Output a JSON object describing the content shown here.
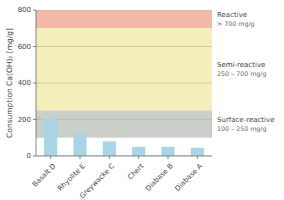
{
  "chart_data": {
    "type": "bar",
    "categories": [
      "Basalt D",
      "Rhyolite E",
      "Greywacke C",
      "Chert",
      "Diabase B",
      "Diabase A"
    ],
    "values": [
      205,
      120,
      80,
      50,
      50,
      45
    ],
    "color": "#a8d4e6",
    "ylabel": "Consumption Ca(OH)₂ [mg/g]",
    "ylim": [
      0,
      800
    ],
    "yticks": [
      0,
      200,
      400,
      600,
      800
    ],
    "grid": true,
    "zones": [
      {
        "label": "Reactive",
        "sub": "> 700 mg/g",
        "ymin": 700,
        "ymax": 800,
        "color": "#f2b8a8"
      },
      {
        "label": "Semi-reactive",
        "sub": "250 – 700 mg/g",
        "ymin": 250,
        "ymax": 700,
        "color": "#f5eeba"
      },
      {
        "label": "Surface-reactive",
        "sub": "100 – 250 mg/g",
        "ymin": 100,
        "ymax": 250,
        "color": "#c8d0c8"
      }
    ]
  }
}
